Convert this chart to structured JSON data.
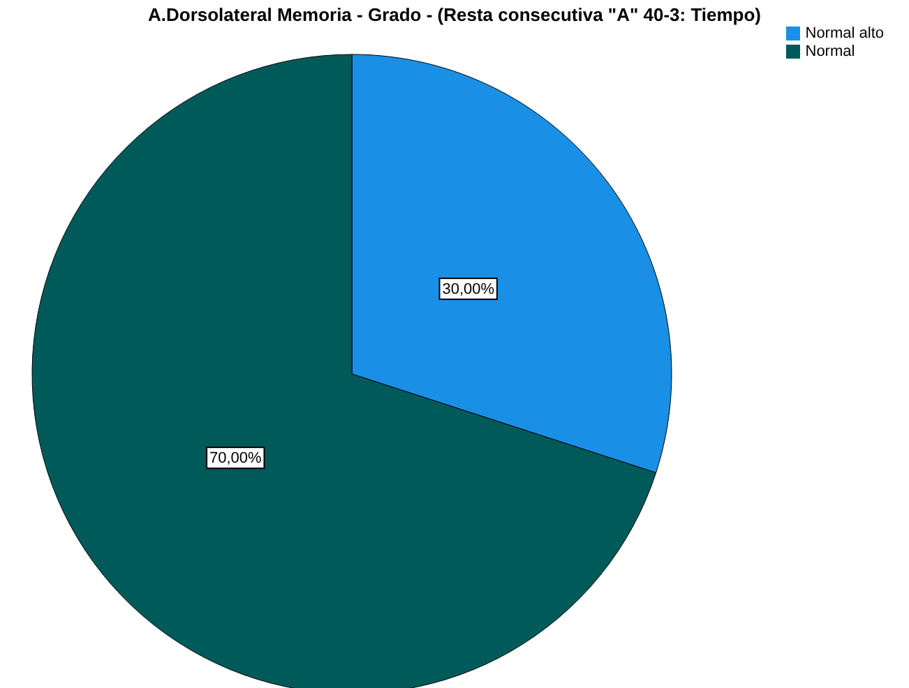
{
  "chart_data": {
    "type": "pie",
    "title": "A.Dorsolateral Memoria - Grado - (Resta consecutiva \"A\" 40-3: Tiempo)",
    "categories": [
      "Normal alto",
      "Normal"
    ],
    "values": [
      30,
      70
    ],
    "colors": [
      "#1a8fe6",
      "#005a5a"
    ],
    "value_labels": [
      "30,00%",
      "70,00%"
    ],
    "legend": "top right"
  }
}
